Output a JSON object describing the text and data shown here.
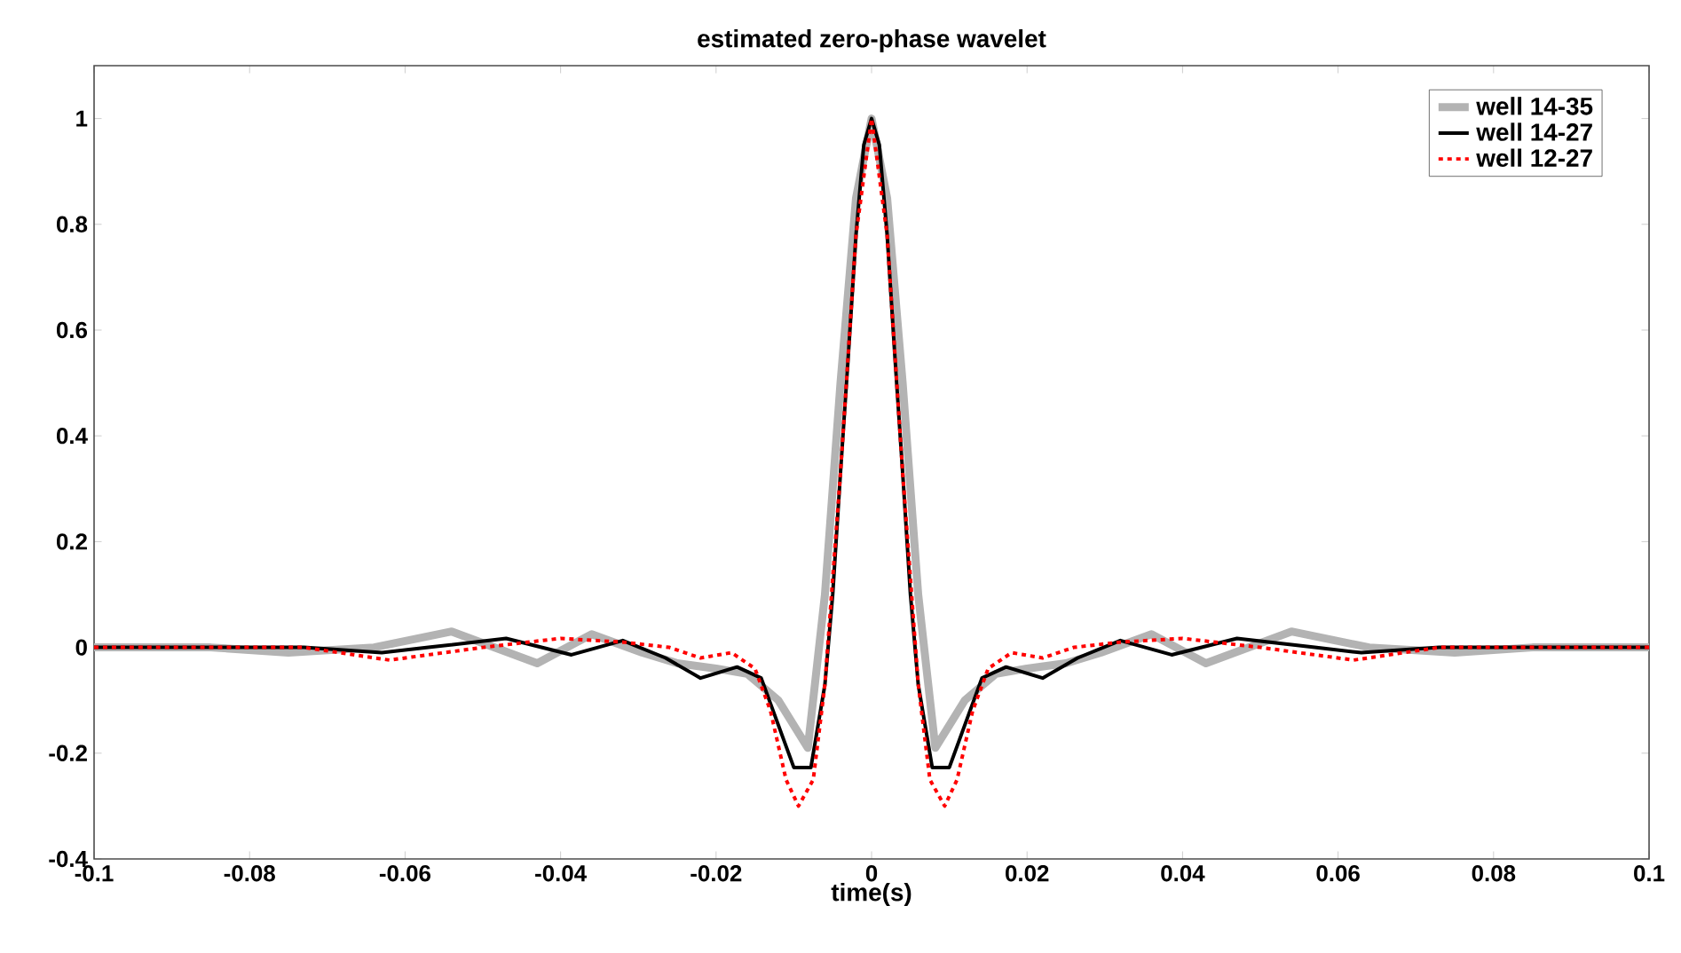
{
  "chart_data": {
    "type": "line",
    "title": "estimated zero-phase wavelet",
    "xlabel": "time(s)",
    "xlim": [
      -0.1,
      0.1
    ],
    "ylim": [
      -0.4,
      1.1
    ],
    "xticks": [
      -0.1,
      -0.08,
      -0.06,
      -0.04,
      -0.02,
      0,
      0.02,
      0.04,
      0.06,
      0.08,
      0.1
    ],
    "yticks": [
      -0.4,
      -0.2,
      0,
      0.2,
      0.4,
      0.6,
      0.8,
      1
    ],
    "legend": "top right",
    "grid": false,
    "marker": "none",
    "series": [
      {
        "name": "well 14-35",
        "color": "#b3b3b3",
        "line_style": "solid",
        "x": [
          -0.1,
          -0.085,
          -0.075,
          -0.064,
          -0.054,
          -0.043,
          -0.036,
          -0.0295,
          -0.025,
          -0.02,
          -0.016,
          -0.012,
          -0.0082,
          -0.006,
          -0.004,
          -0.002,
          0,
          0.002,
          0.004,
          0.006,
          0.0082,
          0.012,
          0.016,
          0.02,
          0.025,
          0.0295,
          0.036,
          0.043,
          0.054,
          0.064,
          0.075,
          0.085,
          0.1
        ],
        "values": [
          0.0,
          0.0,
          -0.01,
          0.0,
          0.03,
          -0.03,
          0.025,
          -0.01,
          -0.03,
          -0.04,
          -0.05,
          -0.1,
          -0.19,
          0.1,
          0.5,
          0.85,
          1.0,
          0.85,
          0.5,
          0.1,
          -0.19,
          -0.1,
          -0.05,
          -0.04,
          -0.03,
          -0.01,
          0.025,
          -0.03,
          0.03,
          0.0,
          -0.01,
          0.0,
          0.0
        ]
      },
      {
        "name": "well 14-27",
        "color": "#000000",
        "line_style": "solid",
        "x": [
          -0.1,
          -0.073,
          -0.063,
          -0.057,
          -0.047,
          -0.0386,
          -0.032,
          -0.0265,
          -0.022,
          -0.0173,
          -0.0142,
          -0.01,
          -0.0078,
          -0.006,
          -0.005,
          -0.004,
          -0.003,
          -0.002,
          -0.001,
          0,
          0.001,
          0.002,
          0.003,
          0.004,
          0.005,
          0.006,
          0.0078,
          0.01,
          0.0142,
          0.0173,
          0.022,
          0.0265,
          0.032,
          0.0386,
          0.047,
          0.057,
          0.063,
          0.073,
          0.1
        ],
        "values": [
          0.0,
          0.0,
          -0.01,
          0.0,
          0.017,
          -0.014,
          0.013,
          -0.02,
          -0.058,
          -0.037,
          -0.058,
          -0.227,
          -0.227,
          -0.07,
          0.1,
          0.33,
          0.55,
          0.78,
          0.95,
          1.0,
          0.95,
          0.78,
          0.55,
          0.33,
          0.1,
          -0.07,
          -0.227,
          -0.227,
          -0.058,
          -0.037,
          -0.058,
          -0.02,
          0.013,
          -0.014,
          0.017,
          0.0,
          -0.01,
          0.0,
          0.0
        ]
      },
      {
        "name": "well 12-27",
        "color": "#ff0000",
        "line_style": "dotted",
        "x": [
          -0.1,
          -0.085,
          -0.073,
          -0.062,
          -0.05,
          -0.04,
          -0.032,
          -0.026,
          -0.022,
          -0.018,
          -0.015,
          -0.013,
          -0.011,
          -0.0094,
          -0.0075,
          -0.006,
          -0.004,
          -0.002,
          0,
          0.002,
          0.004,
          0.006,
          0.0075,
          0.0094,
          0.011,
          0.013,
          0.015,
          0.018,
          0.022,
          0.026,
          0.032,
          0.04,
          0.05,
          0.062,
          0.073,
          0.085,
          0.1
        ],
        "values": [
          0.0,
          0.0,
          0.0,
          -0.024,
          0.0,
          0.017,
          0.01,
          0.0,
          -0.02,
          -0.01,
          -0.04,
          -0.12,
          -0.25,
          -0.3,
          -0.25,
          -0.07,
          0.33,
          0.78,
          1.0,
          0.78,
          0.33,
          -0.07,
          -0.25,
          -0.3,
          -0.25,
          -0.12,
          -0.04,
          -0.01,
          -0.02,
          0.0,
          0.01,
          0.017,
          0.0,
          -0.024,
          0.0,
          0.0,
          0.0
        ]
      }
    ]
  }
}
